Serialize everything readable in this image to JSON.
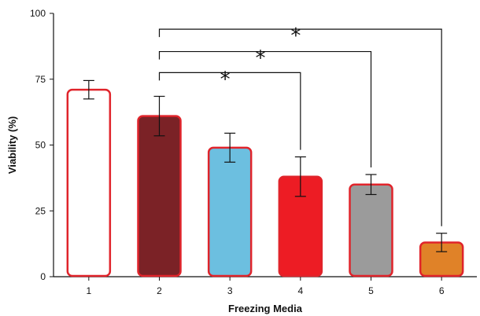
{
  "chart_data": {
    "type": "bar",
    "categories": [
      "1",
      "2",
      "3",
      "4",
      "5",
      "6"
    ],
    "values": [
      71,
      61,
      49,
      38,
      35,
      13
    ],
    "error": [
      3.5,
      7.5,
      5.5,
      7.5,
      3.8,
      3.5
    ],
    "colors": [
      "#ffffff",
      "#7b2226",
      "#6cbfe0",
      "#ed1c24",
      "#9b9b9b",
      "#e08228"
    ],
    "border_color": "#e0242b",
    "xlabel": "Freezing Media",
    "ylabel": "Viability (%)",
    "ylim": [
      0,
      100
    ],
    "yticks": [
      "0",
      "25",
      "50",
      "75",
      "100"
    ],
    "grid": false,
    "significance": [
      {
        "from": "2",
        "to": "4",
        "label": "*"
      },
      {
        "from": "2",
        "to": "5",
        "label": "*"
      },
      {
        "from": "2",
        "to": "6",
        "label": "*"
      }
    ]
  }
}
